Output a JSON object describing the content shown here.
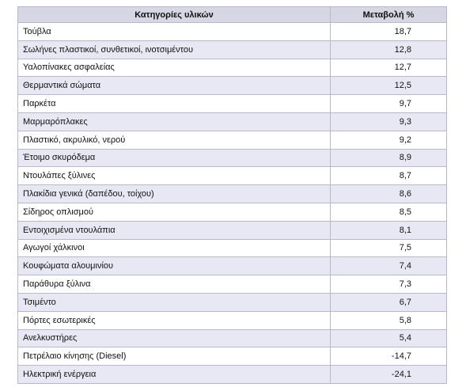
{
  "table": {
    "header": [
      "Κατηγορίες υλικών",
      "Μεταβολή %"
    ],
    "rows": [
      [
        "Τούβλα",
        "18,7"
      ],
      [
        "Σωλήνες πλαστικοί, συνθετικοί, ινοτσιμέντου",
        "12,8"
      ],
      [
        "Υαλοπίνακες ασφαλείας",
        "12,7"
      ],
      [
        "Θερμαντικά σώματα",
        "12,5"
      ],
      [
        "Παρκέτα",
        "9,7"
      ],
      [
        "Μαρμαρόπλακες",
        "9,3"
      ],
      [
        "Πλαστικό, ακρυλικό, νερού",
        "9,2"
      ],
      [
        "Έτοιμο σκυρόδεμα",
        "8,9"
      ],
      [
        "Ντουλάπες ξύλινες",
        "8,7"
      ],
      [
        "Πλακίδια γενικά (δαπέδου, τοίχου)",
        "8,6"
      ],
      [
        "Σίδηρος οπλισμού",
        "8,5"
      ],
      [
        "Εντοιχισμένα ντουλάπια",
        "8,1"
      ],
      [
        "Αγωγοί χάλκινοι",
        "7,5"
      ],
      [
        "Κουφώματα αλουμινίου",
        "7,4"
      ],
      [
        "Παράθυρα ξύλινα",
        "7,3"
      ],
      [
        "Τσιμέντο",
        "6,7"
      ],
      [
        "Πόρτες εσωτερικές",
        "5,8"
      ],
      [
        "Ανελκυστήρες",
        "5,4"
      ],
      [
        "Πετρέλαιο κίνησης (Diesel)",
        "-14,7"
      ],
      [
        "Ηλεκτρική ενέργεια",
        "-24,1"
      ]
    ]
  }
}
